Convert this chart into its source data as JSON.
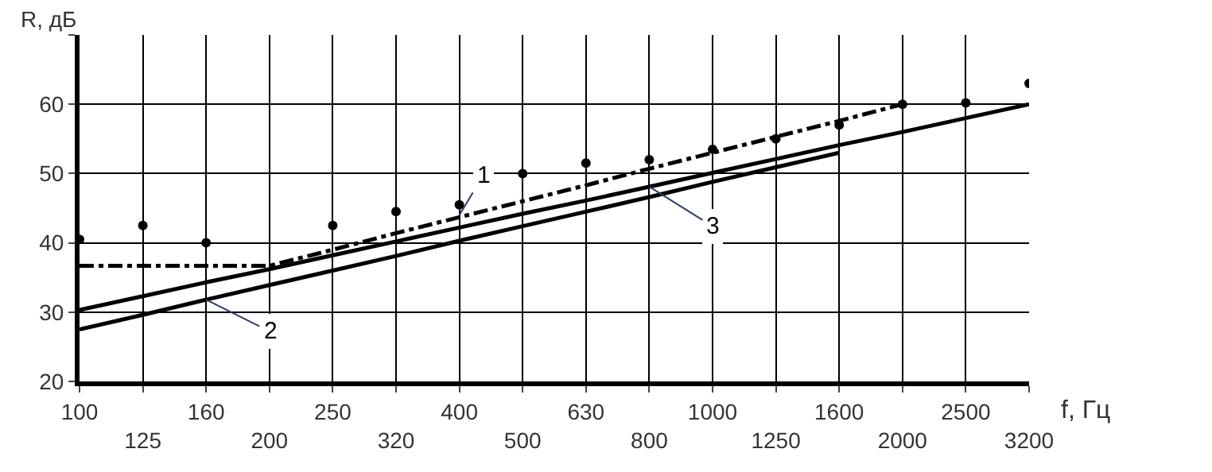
{
  "chart_data": {
    "type": "line",
    "xlabel": "f, Гц",
    "ylabel": "R, дБ",
    "categories": [
      "100",
      "125",
      "160",
      "200",
      "250",
      "320",
      "400",
      "500",
      "630",
      "800",
      "1000",
      "1250",
      "1600",
      "2000",
      "2500",
      "3200"
    ],
    "series": [
      {
        "color": "#000000",
        "line_style": "dashdot",
        "values": [
          36.7,
          36.7,
          36.7,
          36.7,
          39.0,
          41.4,
          43.7,
          46.0,
          48.3,
          50.7,
          53.0,
          55.3,
          57.6,
          60.0,
          null,
          null
        ]
      },
      {
        "color": "#000000",
        "values": [
          30.3,
          32.3,
          34.3,
          36.2,
          38.2,
          40.2,
          42.2,
          44.2,
          46.1,
          48.1,
          50.1,
          52.1,
          54.1,
          56.0,
          58.0,
          60.0
        ]
      },
      {
        "color": "#000000",
        "values": [
          27.5,
          29.6,
          31.8,
          33.9,
          36.0,
          38.1,
          40.3,
          42.4,
          44.5,
          46.6,
          48.8,
          50.9,
          53.0,
          null,
          null,
          null
        ]
      },
      {
        "type": "scatter",
        "color": "#000000",
        "marker": "circle",
        "values": [
          40.5,
          42.5,
          40.0,
          null,
          42.5,
          44.5,
          45.5,
          50.0,
          51.5,
          52.0,
          53.5,
          55.0,
          57.0,
          60.0,
          60.2,
          63.0
        ]
      }
    ],
    "ylim": [
      20,
      70
    ],
    "yticks": [
      20,
      30,
      40,
      50,
      60,
      {
        "value": 70,
        "label": null
      }
    ],
    "grid": true,
    "annotations": [
      {
        "text": "1",
        "x": "400",
        "y": 44
      },
      {
        "text": "2",
        "x": "160",
        "y": 31.8
      },
      {
        "text": "3",
        "x": "800",
        "y": 48.1
      }
    ]
  }
}
